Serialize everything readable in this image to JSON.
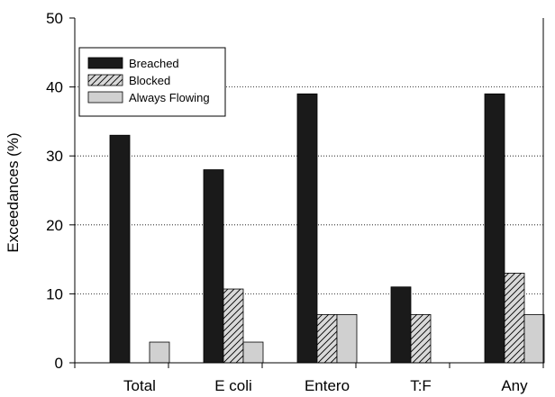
{
  "chart_data": {
    "type": "bar",
    "title": "",
    "xlabel": "",
    "ylabel": "Exceedances (%)",
    "ylim": [
      0,
      50
    ],
    "yticks": [
      0,
      10,
      20,
      30,
      40,
      50
    ],
    "grid": "horizontal dotted",
    "legend_position": "top-left",
    "categories": [
      "Total",
      "E coli",
      "Entero",
      "T:F",
      "Any"
    ],
    "series": [
      {
        "name": "Breached",
        "values": [
          33,
          28,
          39,
          11,
          39
        ],
        "color": "#1a1a1a",
        "pattern": "solid"
      },
      {
        "name": "Blocked",
        "values": [
          null,
          10.7,
          7,
          7,
          13
        ],
        "color": "#d9d9d9",
        "pattern": "hatch"
      },
      {
        "name": "Always Flowing",
        "values": [
          3,
          3,
          7,
          null,
          7
        ],
        "color": "#d0d0d0",
        "pattern": "solid"
      }
    ]
  }
}
